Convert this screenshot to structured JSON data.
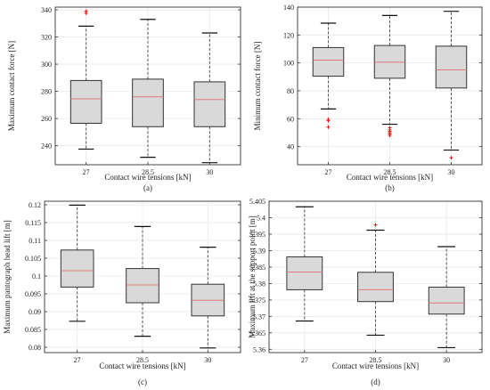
{
  "figure": {
    "colors": {
      "box_fill": "#d9d9d9",
      "box_edge": "#333333",
      "median": "#e07a7a",
      "outlier": "#ee1111",
      "whisker": "#555555",
      "grid": "#e8e8e8",
      "axes": "#333333"
    }
  },
  "chart_data": [
    {
      "type": "box",
      "caption": "(a)",
      "title": "",
      "xlabel": "Contact wire tensions  [kN]",
      "ylabel": "Maximum contact force  [N]",
      "categories": [
        "27",
        "28.5",
        "30"
      ],
      "ylim": [
        226,
        342
      ],
      "yticks": [
        240,
        260,
        280,
        300,
        320,
        340
      ],
      "ytick_labels": [
        "240",
        "260",
        "280",
        "300",
        "320",
        "340"
      ],
      "grid": true,
      "boxes": [
        {
          "whisker_low": 237.5,
          "q1": 256.5,
          "median": 274.5,
          "q3": 288,
          "whisker_high": 328,
          "outliers": [
            337.5,
            339
          ]
        },
        {
          "whisker_low": 231.5,
          "q1": 254,
          "median": 276,
          "q3": 289,
          "whisker_high": 333,
          "outliers": []
        },
        {
          "whisker_low": 227.5,
          "q1": 254,
          "median": 274,
          "q3": 287,
          "whisker_high": 323,
          "outliers": []
        }
      ]
    },
    {
      "type": "box",
      "caption": "(b)",
      "title": "",
      "xlabel": "Contact wire tensions  [kN]",
      "ylabel": "Minimum contact force  [N]",
      "categories": [
        "27",
        "28.5",
        "30"
      ],
      "ylim": [
        27,
        140
      ],
      "yticks": [
        40,
        60,
        80,
        100,
        120,
        140
      ],
      "ytick_labels": [
        "40",
        "60",
        "80",
        "100",
        "120",
        "140"
      ],
      "grid": true,
      "boxes": [
        {
          "whisker_low": 67,
          "q1": 90.5,
          "median": 102,
          "q3": 111,
          "whisker_high": 128.5,
          "outliers": [
            58.5,
            59.5,
            54
          ]
        },
        {
          "whisker_low": 56,
          "q1": 89,
          "median": 100.5,
          "q3": 112.5,
          "whisker_high": 134,
          "outliers": [
            53.5,
            52,
            51,
            50,
            49,
            48
          ]
        },
        {
          "whisker_low": 37.5,
          "q1": 82,
          "median": 95,
          "q3": 112,
          "whisker_high": 137,
          "outliers": [
            32
          ]
        }
      ]
    },
    {
      "type": "box",
      "caption": "(c)",
      "title": "",
      "xlabel": "Contact wire tensions  [kN]",
      "ylabel": "Maximum pantograph head lift  [m]",
      "categories": [
        "27",
        "28.5",
        "30"
      ],
      "ylim": [
        0.0785,
        0.121
      ],
      "yticks": [
        0.08,
        0.085,
        0.09,
        0.095,
        0.1,
        0.105,
        0.11,
        0.115,
        0.12
      ],
      "ytick_labels": [
        "0.08",
        "0.085",
        "0.09",
        "0.095",
        "0.1",
        "0.105",
        "0.11",
        "0.115",
        "0.12"
      ],
      "grid": true,
      "boxes": [
        {
          "whisker_low": 0.0873,
          "q1": 0.0969,
          "median": 0.1015,
          "q3": 0.1073,
          "whisker_high": 0.1199,
          "outliers": []
        },
        {
          "whisker_low": 0.0831,
          "q1": 0.0925,
          "median": 0.0975,
          "q3": 0.1021,
          "whisker_high": 0.1139,
          "outliers": []
        },
        {
          "whisker_low": 0.0798,
          "q1": 0.0888,
          "median": 0.0932,
          "q3": 0.0977,
          "whisker_high": 0.1081,
          "outliers": []
        }
      ]
    },
    {
      "type": "box",
      "caption": "(d)",
      "title": "",
      "xlabel": "Contact wire tensions  [kN]",
      "ylabel": "Maximum lift at the support point [m]",
      "categories": [
        "27",
        "28.5",
        "30"
      ],
      "ylim": [
        5.359,
        5.405
      ],
      "yticks": [
        5.36,
        5.365,
        5.37,
        5.375,
        5.38,
        5.385,
        5.39,
        5.395,
        5.4,
        5.405
      ],
      "ytick_labels": [
        "5.36",
        "5.365",
        "5.37",
        "5.375",
        "5.38",
        "5.385",
        "5.39",
        "5.395",
        "5.4",
        "5.405"
      ],
      "grid": true,
      "boxes": [
        {
          "whisker_low": 5.3686,
          "q1": 5.3781,
          "median": 5.3835,
          "q3": 5.3881,
          "whisker_high": 5.4033,
          "outliers": []
        },
        {
          "whisker_low": 5.3643,
          "q1": 5.3745,
          "median": 5.3781,
          "q3": 5.3834,
          "whisker_high": 5.3962,
          "outliers": [
            5.3978
          ]
        },
        {
          "whisker_low": 5.3605,
          "q1": 5.3707,
          "median": 5.3741,
          "q3": 5.3789,
          "whisker_high": 5.3912,
          "outliers": []
        }
      ]
    }
  ]
}
